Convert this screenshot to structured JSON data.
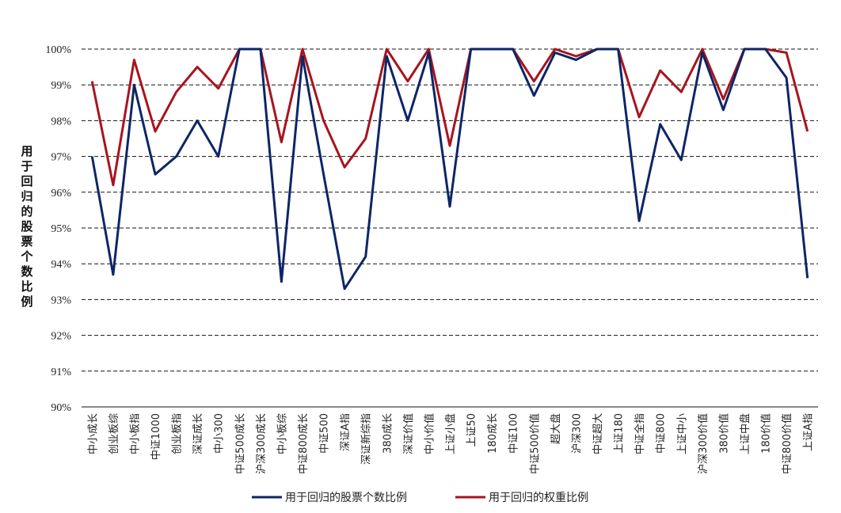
{
  "chart_data": {
    "type": "line",
    "ylabel": "用于回归的股票个数比例",
    "ylim": [
      90,
      100
    ],
    "yticks": [
      "90%",
      "91%",
      "92%",
      "93%",
      "94%",
      "95%",
      "96%",
      "97%",
      "98%",
      "99%",
      "100%"
    ],
    "grid": true,
    "legend_position": "bottom",
    "categories": [
      "中小成长",
      "创业板综",
      "中小板指",
      "中证1000",
      "创业板指",
      "深证成长",
      "中小300",
      "中证500成长",
      "沪深300成长",
      "中小板综",
      "中证800成长",
      "中证500",
      "深证A指",
      "深证新综指",
      "380成长",
      "深证价值",
      "中小价值",
      "上证小盘",
      "上证50",
      "180成长",
      "中证100",
      "中证500价值",
      "超大盘",
      "沪深300",
      "中证超大",
      "上证180",
      "中证全指",
      "中证800",
      "上证中小",
      "沪深300价值",
      "380价值",
      "上证中盘",
      "180价值",
      "中证800价值",
      "上证A指"
    ],
    "series": [
      {
        "name": "用于回归的股票个数比例",
        "color": "#0d2666",
        "values": [
          97.0,
          93.7,
          99.0,
          96.5,
          97.0,
          98.0,
          97.0,
          100.0,
          100.0,
          93.5,
          99.8,
          96.5,
          93.3,
          94.2,
          99.8,
          98.0,
          99.9,
          95.6,
          100.0,
          100.0,
          100.0,
          98.7,
          99.9,
          99.7,
          100.0,
          100.0,
          95.2,
          97.9,
          96.9,
          99.9,
          98.3,
          100.0,
          100.0,
          99.2,
          93.6
        ]
      },
      {
        "name": "用于回归的权重比例",
        "color": "#a8141e",
        "values": [
          99.1,
          96.2,
          99.7,
          97.7,
          98.8,
          99.5,
          98.9,
          100.0,
          100.0,
          97.4,
          100.0,
          98.0,
          96.7,
          97.5,
          100.0,
          99.1,
          100.0,
          97.3,
          100.0,
          100.0,
          100.0,
          99.1,
          100.0,
          99.8,
          100.0,
          100.0,
          98.1,
          99.4,
          98.8,
          100.0,
          98.6,
          100.0,
          100.0,
          99.9,
          97.7
        ]
      }
    ]
  }
}
